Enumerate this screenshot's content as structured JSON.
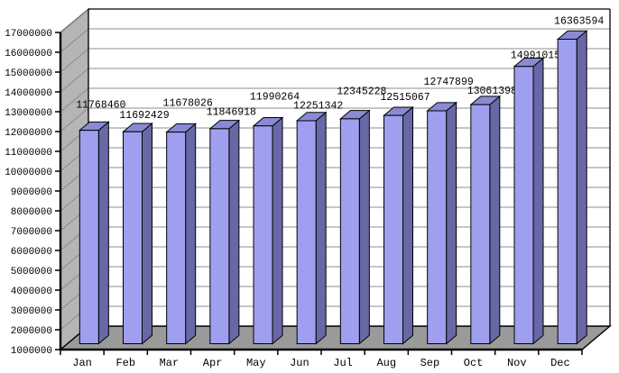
{
  "chart_data": {
    "type": "bar",
    "threeD": true,
    "title": "",
    "xlabel": "",
    "ylabel": "",
    "categories": [
      "Jan",
      "Feb",
      "Mar",
      "Apr",
      "May",
      "Jun",
      "Jul",
      "Aug",
      "Sep",
      "Oct",
      "Nov",
      "Dec"
    ],
    "values": [
      11768460,
      11692429,
      11678026,
      11846918,
      11990264,
      12251342,
      12345228,
      12515067,
      12747899,
      13061398,
      14991015,
      16363594
    ],
    "data_labels": [
      "11768460",
      "11692429",
      "11678026",
      "11846918",
      "11990264",
      "12251342",
      "12345228",
      "12515067",
      "12747899",
      "13061398",
      "14991015",
      "16363594"
    ],
    "ylim": [
      1000000,
      17000000
    ],
    "ytick_step": 1000000,
    "y_ticks": [
      "1000000",
      "2000000",
      "3000000",
      "4000000",
      "5000000",
      "6000000",
      "7000000",
      "8000000",
      "9000000",
      "10000000",
      "11000000",
      "12000000",
      "13000000",
      "14000000",
      "15000000",
      "16000000",
      "17000000"
    ],
    "grid": true,
    "legend_position": "none",
    "label_raise": [
      16,
      6,
      20,
      6,
      20,
      4,
      18,
      8,
      20,
      3,
      0,
      8
    ],
    "colors": {
      "bar_front": "#9f9ff0",
      "bar_side": "#6868a6",
      "bar_top": "#8a8ad4",
      "wall_side": "#b5b5b5",
      "floor": "#9a9a9a",
      "back_wall": "#ffffff",
      "gridline": "#8c8c8c",
      "outline": "#000000",
      "text": "#000000"
    }
  }
}
